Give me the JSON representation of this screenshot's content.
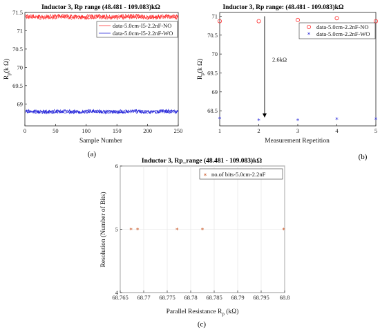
{
  "chart_data": [
    {
      "id": "a",
      "type": "line",
      "title": "Inductor 3, Rp range (48.481 - 109.083)kΩ",
      "xlabel": "Sample Number",
      "ylabel": "R_p(k Ω)",
      "ylabel_main": "R",
      "ylabel_sub": "p",
      "ylabel_rest": "(k Ω)",
      "xlim": [
        0,
        250
      ],
      "ylim": [
        68.4,
        71.5
      ],
      "xticks": [
        "0",
        "50",
        "100",
        "150",
        "200",
        "250"
      ],
      "yticks": [
        "69",
        "69.5",
        "70",
        "70.5",
        "71",
        "71.5"
      ],
      "grid": false,
      "legend_position": "top-right",
      "caption": "(a)",
      "series": [
        {
          "name": "data-5.0cm-I5-2.2nF-NO",
          "color": "#ff2a2a",
          "mean": 71.38,
          "spread": 0.06
        },
        {
          "name": "data-5.0cm-I5-2.2nF-WO",
          "color": "#1f1fd8",
          "mean": 68.79,
          "spread": 0.05
        }
      ]
    },
    {
      "id": "b",
      "type": "scatter",
      "title": "Inductor 3, Rp range: (48.481 - 109.083)kΩ",
      "xlabel": "Measurement Repetition",
      "ylabel": "R_p(k Ω)",
      "ylabel_main": "R",
      "ylabel_sub": "p",
      "ylabel_rest": "(k Ω)",
      "xlim": [
        1,
        5
      ],
      "ylim": [
        68.1,
        71.1
      ],
      "xticks": [
        "1",
        "2",
        "3",
        "4",
        "5"
      ],
      "yticks": [
        "68.5",
        "69",
        "69.5",
        "70",
        "70.5",
        "71"
      ],
      "grid": false,
      "legend_position": "top-right",
      "caption": "(b)",
      "annotation": "2.6kΩ",
      "arrow_x": 2.15,
      "arrow_from": 71.0,
      "arrow_to": 68.32,
      "series": [
        {
          "name": "data-5.0cm-2.2nF-NO",
          "color": "#ff2a2a",
          "marker": "circle",
          "x": [
            1,
            2,
            3,
            4,
            5
          ],
          "y": [
            70.87,
            70.87,
            70.9,
            70.95,
            70.87
          ]
        },
        {
          "name": "data-5.0cm-2.2nF-WO",
          "color": "#1f1fd8",
          "marker": "star",
          "x": [
            1,
            2,
            3,
            4,
            5
          ],
          "y": [
            68.3,
            68.26,
            68.26,
            68.28,
            68.28
          ]
        }
      ]
    },
    {
      "id": "c",
      "type": "scatter",
      "title": "Inductor 3, Rp_range (48.481 - 109.083)kΩ",
      "xlabel": "Parallel Resistance R_p (kΩ)",
      "xlabel_main": "Parallel Resistance R",
      "xlabel_sub": "p",
      "xlabel_rest": " (kΩ)",
      "ylabel": "Resolution (Number of Bits)",
      "xlim": [
        68.765,
        68.8
      ],
      "ylim": [
        4,
        6
      ],
      "xticks": [
        "68.765",
        "68.77",
        "68.775",
        "68.78",
        "68.785",
        "68.79",
        "68.795",
        "68.8"
      ],
      "yticks": [
        "4",
        "5",
        "6"
      ],
      "grid": true,
      "legend_position": "top-right",
      "caption": "(c)",
      "series": [
        {
          "name": "no.of bits-5.0cm-2.2nF",
          "color": "#c8501e",
          "marker": "star",
          "x": [
            68.7673,
            68.7687,
            68.7771,
            68.7825,
            68.7998
          ],
          "y": [
            5,
            5,
            5,
            5,
            5
          ]
        }
      ]
    }
  ]
}
